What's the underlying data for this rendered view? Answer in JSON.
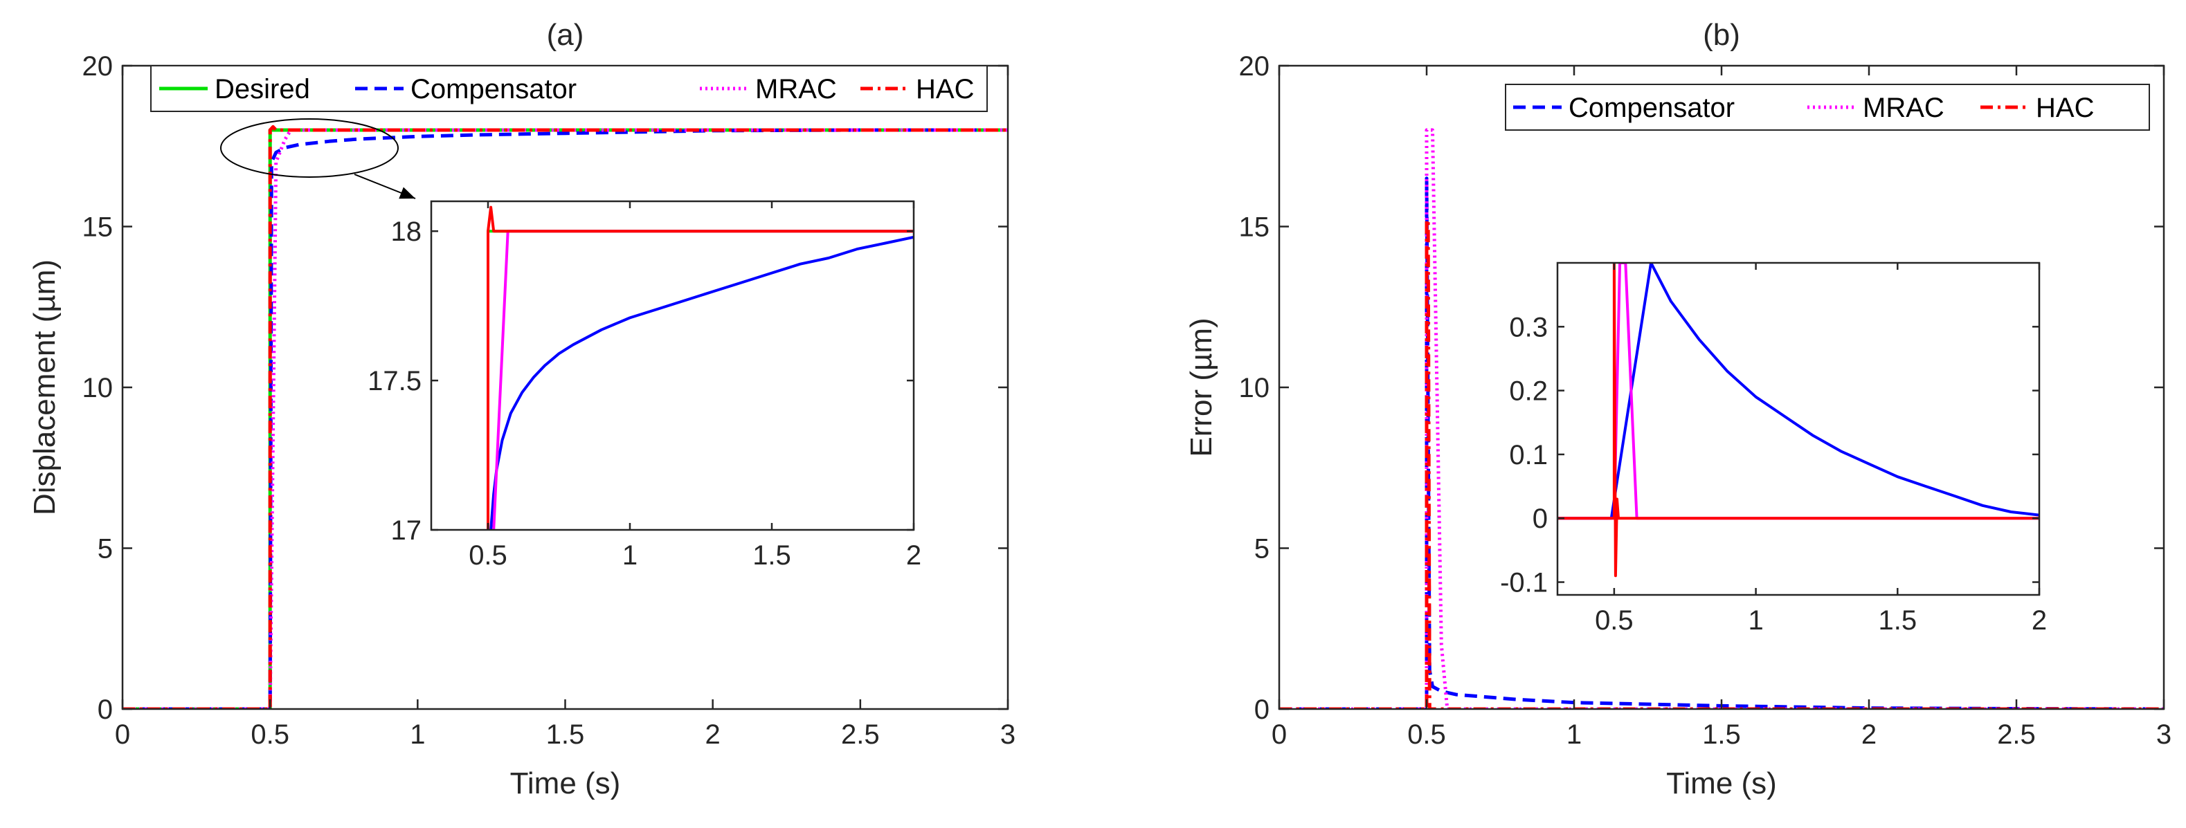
{
  "chart_data": [
    {
      "id": "a",
      "type": "line",
      "title": "(a)",
      "xlabel": "Time (s)",
      "ylabel": "Displacement (µm)",
      "xlim": [
        0,
        3
      ],
      "ylim": [
        0,
        20
      ],
      "xticks": [
        0,
        0.5,
        1,
        1.5,
        2,
        2.5,
        3
      ],
      "yticks": [
        0,
        5,
        10,
        15,
        20
      ],
      "xtick_labels": [
        "0",
        "0.5",
        "1",
        "1.5",
        "2",
        "2.5",
        "3"
      ],
      "ytick_labels": [
        "0",
        "5",
        "10",
        "15",
        "20"
      ],
      "legend": [
        "Desired",
        "Compensator",
        "MRAC",
        "HAC"
      ],
      "legend_position": "top",
      "series": [
        {
          "name": "Desired",
          "color": "#00e000",
          "style": "solid",
          "x": [
            0,
            0.5,
            0.5,
            3
          ],
          "y": [
            0,
            0,
            18,
            18
          ]
        },
        {
          "name": "Compensator",
          "color": "#0000ff",
          "style": "dashed",
          "x": [
            0,
            0.5,
            0.505,
            0.52,
            0.55,
            0.6,
            0.7,
            0.8,
            1.0,
            1.2,
            1.5,
            2.0,
            2.5,
            3.0
          ],
          "y": [
            0,
            0,
            17.0,
            17.3,
            17.45,
            17.55,
            17.65,
            17.72,
            17.8,
            17.85,
            17.9,
            17.98,
            18.0,
            18.0
          ]
        },
        {
          "name": "MRAC",
          "color": "#ff00ff",
          "style": "dotted",
          "x": [
            0,
            0.5,
            0.52,
            0.55,
            0.57,
            3
          ],
          "y": [
            0,
            0,
            17.0,
            17.7,
            18.0,
            18.0
          ]
        },
        {
          "name": "HAC",
          "color": "#ff0000",
          "style": "dashdot",
          "x": [
            0,
            0.5,
            0.5,
            0.51,
            0.52,
            3
          ],
          "y": [
            0,
            0,
            18.0,
            18.1,
            18.0,
            18.0
          ]
        }
      ],
      "annotation": "ellipse around step region with arrow to inset",
      "inset": {
        "xlim": [
          0.3,
          2
        ],
        "ylim": [
          17,
          18.1
        ],
        "xticks": [
          0.5,
          1,
          1.5,
          2
        ],
        "yticks": [
          17,
          17.5,
          18
        ],
        "xtick_labels": [
          "0.5",
          "1",
          "1.5",
          "2"
        ],
        "ytick_labels": [
          "17",
          "17.5",
          "18"
        ],
        "series": [
          {
            "name": "Desired",
            "color": "#00e000",
            "style": "solid",
            "x": [
              0.5,
              0.5,
              2
            ],
            "y": [
              17,
              18,
              18
            ]
          },
          {
            "name": "Compensator",
            "color": "#0000ff",
            "style": "solid",
            "x": [
              0.51,
              0.52,
              0.53,
              0.55,
              0.58,
              0.62,
              0.66,
              0.7,
              0.75,
              0.8,
              0.9,
              1.0,
              1.1,
              1.2,
              1.3,
              1.4,
              1.5,
              1.6,
              1.7,
              1.8,
              1.9,
              2.0
            ],
            "y": [
              17.0,
              17.12,
              17.2,
              17.3,
              17.39,
              17.46,
              17.51,
              17.55,
              17.59,
              17.62,
              17.67,
              17.71,
              17.74,
              17.77,
              17.8,
              17.83,
              17.86,
              17.89,
              17.91,
              17.94,
              17.96,
              17.98
            ]
          },
          {
            "name": "MRAC",
            "color": "#ff00ff",
            "style": "solid",
            "x": [
              0.52,
              0.55,
              0.57,
              2
            ],
            "y": [
              17.0,
              17.6,
              18.0,
              18.0
            ]
          },
          {
            "name": "HAC",
            "color": "#ff0000",
            "style": "solid",
            "x": [
              0.5,
              0.5,
              0.51,
              0.52,
              2
            ],
            "y": [
              17.0,
              18.0,
              18.08,
              18.0,
              18.0
            ]
          }
        ]
      }
    },
    {
      "id": "b",
      "type": "line",
      "title": "(b)",
      "xlabel": "Time (s)",
      "ylabel": "Error (µm)",
      "xlim": [
        0,
        3
      ],
      "ylim": [
        0,
        20
      ],
      "xticks": [
        0,
        0.5,
        1,
        1.5,
        2,
        2.5,
        3
      ],
      "yticks": [
        0,
        5,
        10,
        15,
        20
      ],
      "xtick_labels": [
        "0",
        "0.5",
        "1",
        "1.5",
        "2",
        "2.5",
        "3"
      ],
      "ytick_labels": [
        "0",
        "5",
        "10",
        "15",
        "20"
      ],
      "legend": [
        "Compensator",
        "MRAC",
        "HAC"
      ],
      "legend_position": "top-right",
      "series": [
        {
          "name": "Compensator",
          "color": "#0000ff",
          "style": "dashed",
          "x": [
            0,
            0.5,
            0.5,
            0.51,
            0.52,
            0.55,
            0.6,
            0.8,
            1.0,
            1.5,
            2.0,
            2.5,
            3.0
          ],
          "y": [
            0,
            0,
            16.5,
            1.2,
            0.7,
            0.55,
            0.45,
            0.3,
            0.2,
            0.1,
            0.03,
            0.01,
            0.0
          ]
        },
        {
          "name": "MRAC",
          "color": "#ff00ff",
          "style": "dotted",
          "x": [
            0,
            0.5,
            0.5,
            0.52,
            0.55,
            0.57,
            3
          ],
          "y": [
            0,
            0,
            18.0,
            18.0,
            2.0,
            0.0,
            0.0
          ]
        },
        {
          "name": "HAC",
          "color": "#ff0000",
          "style": "dashdot",
          "x": [
            0,
            0.5,
            0.5,
            0.505,
            0.51,
            3
          ],
          "y": [
            0,
            0,
            15.2,
            15.2,
            0.0,
            0.0
          ]
        }
      ],
      "inset": {
        "xlim": [
          0.3,
          2
        ],
        "ylim": [
          -0.12,
          0.4
        ],
        "xticks": [
          0.5,
          1,
          1.5,
          2
        ],
        "yticks": [
          -0.1,
          0,
          0.1,
          0.2,
          0.3
        ],
        "xtick_labels": [
          "0.5",
          "1",
          "1.5",
          "2"
        ],
        "ytick_labels": [
          "-0.1",
          "0",
          "0.1",
          "0.2",
          "0.3"
        ],
        "series": [
          {
            "name": "Compensator",
            "color": "#0000ff",
            "style": "solid",
            "x": [
              0.3,
              0.49,
              0.63,
              0.7,
              0.8,
              0.9,
              1.0,
              1.1,
              1.2,
              1.3,
              1.4,
              1.5,
              1.6,
              1.7,
              1.8,
              1.9,
              2.0
            ],
            "y": [
              0.0,
              0.0,
              0.4,
              0.34,
              0.28,
              0.23,
              0.19,
              0.16,
              0.13,
              0.105,
              0.085,
              0.065,
              0.05,
              0.035,
              0.02,
              0.01,
              0.005
            ]
          },
          {
            "name": "MRAC",
            "color": "#ff00ff",
            "style": "solid",
            "x": [
              0.3,
              0.5,
              0.52,
              0.54,
              0.56,
              0.58,
              2.0
            ],
            "y": [
              0.0,
              0.0,
              0.4,
              0.4,
              0.2,
              0.0,
              0.0
            ]
          },
          {
            "name": "HAC",
            "color": "#ff0000",
            "style": "solid",
            "x": [
              0.3,
              0.5,
              0.5,
              0.505,
              0.51,
              0.515,
              2.0
            ],
            "y": [
              0.0,
              0.0,
              0.4,
              -0.09,
              0.03,
              0.0,
              0.0
            ]
          }
        ]
      }
    }
  ]
}
